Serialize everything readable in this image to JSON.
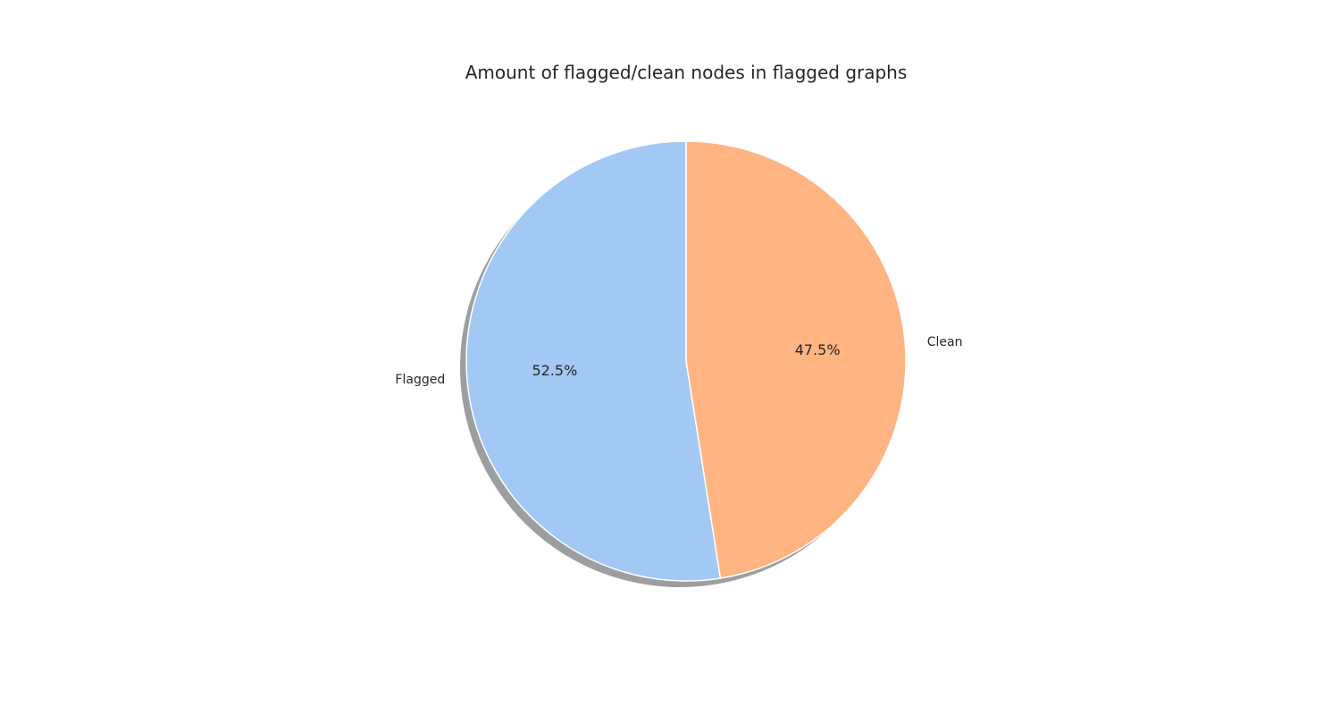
{
  "chart_data": {
    "type": "pie",
    "title": "Amount of flagged/clean nodes in flagged graphs",
    "categories": [
      "Flagged",
      "Clean"
    ],
    "values": [
      52.5,
      47.5
    ],
    "percent_labels": [
      "52.5%",
      "47.5%"
    ],
    "colors": [
      "#a1c9f4",
      "#ffb482"
    ],
    "start_angle_deg": 90,
    "direction": "counterclockwise",
    "shadow": true,
    "legend": "none"
  }
}
